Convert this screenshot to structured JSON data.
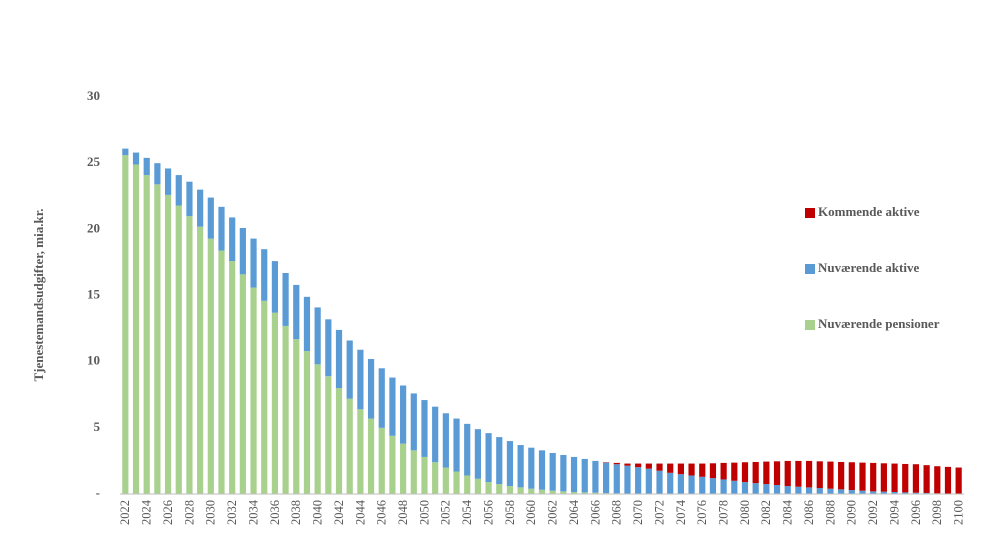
{
  "chart_data": {
    "type": "stacked_bar",
    "y_label": "Tjenestemandsudgifter, mia.kr.",
    "categories": [
      "2022",
      null,
      "2024",
      null,
      "2026",
      null,
      "2028",
      null,
      "2030",
      null,
      "2032",
      null,
      "2034",
      null,
      "2036",
      null,
      "2038",
      null,
      "2040",
      null,
      "2042",
      null,
      "2044",
      null,
      "2046",
      null,
      "2048",
      null,
      "2050",
      null,
      "2052",
      null,
      "2054",
      null,
      "2056",
      null,
      "2058",
      null,
      "2060",
      null,
      "2062",
      null,
      "2064",
      null,
      "2066",
      null,
      "2068",
      null,
      "2070",
      null,
      "2072",
      null,
      "2074",
      null,
      "2076",
      null,
      "2078",
      null,
      "2080",
      null,
      "2082",
      null,
      "2084",
      null,
      "2086",
      null,
      "2088",
      null,
      "2090",
      null,
      "2092",
      null,
      "2094",
      null,
      "2096",
      null,
      "2098",
      null,
      "2100"
    ],
    "series": [
      {
        "name": "Nuværende pensioner",
        "color": "#a9d18e",
        "values": [
          25.6,
          24.9,
          24.1,
          23.4,
          22.6,
          21.8,
          21.0,
          20.2,
          19.3,
          18.4,
          17.6,
          16.6,
          15.6,
          14.6,
          13.7,
          12.7,
          11.7,
          10.8,
          9.8,
          8.9,
          8.0,
          7.2,
          6.4,
          5.7,
          5.0,
          4.4,
          3.8,
          3.3,
          2.8,
          2.4,
          2.0,
          1.7,
          1.4,
          1.15,
          0.9,
          0.75,
          0.6,
          0.5,
          0.4,
          0.32,
          0.25,
          0.2,
          0.15,
          0.12,
          0.1,
          0.07,
          0.05,
          0.04,
          0.03,
          0.02,
          0.01,
          0,
          0,
          0,
          0,
          0,
          0,
          0,
          0,
          0,
          0,
          0,
          0,
          0,
          0,
          0,
          0,
          0,
          0,
          0,
          0,
          0,
          0,
          0,
          0,
          0,
          0,
          0,
          0
        ]
      },
      {
        "name": "Nuværende aktive",
        "color": "#5b9bd5",
        "values": [
          0.5,
          0.9,
          1.3,
          1.6,
          2.0,
          2.3,
          2.6,
          2.8,
          3.1,
          3.3,
          3.3,
          3.5,
          3.7,
          3.9,
          3.9,
          4.0,
          4.1,
          4.1,
          4.3,
          4.3,
          4.4,
          4.4,
          4.5,
          4.5,
          4.5,
          4.4,
          4.4,
          4.3,
          4.3,
          4.2,
          4.1,
          4.0,
          3.9,
          3.75,
          3.7,
          3.55,
          3.4,
          3.2,
          3.1,
          2.98,
          2.85,
          2.75,
          2.65,
          2.53,
          2.4,
          2.3,
          2.2,
          2.1,
          2.0,
          1.9,
          1.75,
          1.6,
          1.5,
          1.4,
          1.3,
          1.2,
          1.1,
          1.0,
          0.9,
          0.82,
          0.75,
          0.68,
          0.6,
          0.55,
          0.5,
          0.45,
          0.4,
          0.35,
          0.3,
          0.25,
          0.2,
          0.18,
          0.15,
          0.12,
          0.1,
          0.08,
          0.05,
          0.03,
          0.02
        ]
      },
      {
        "name": "Kommende aktive",
        "color": "#c00000",
        "values": [
          0,
          0,
          0,
          0,
          0,
          0,
          0,
          0,
          0,
          0,
          0,
          0,
          0,
          0,
          0,
          0,
          0,
          0,
          0,
          0,
          0,
          0,
          0,
          0,
          0,
          0,
          0,
          0,
          0,
          0,
          0,
          0,
          0,
          0,
          0,
          0,
          0,
          0,
          0,
          0,
          0,
          0,
          0,
          0,
          0,
          0.03,
          0.1,
          0.16,
          0.27,
          0.38,
          0.54,
          0.7,
          0.8,
          0.9,
          1.0,
          1.12,
          1.25,
          1.37,
          1.5,
          1.6,
          1.7,
          1.79,
          1.9,
          1.95,
          2.0,
          2.02,
          2.05,
          2.07,
          2.1,
          2.12,
          2.15,
          2.14,
          2.15,
          2.15,
          2.15,
          2.1,
          2.05,
          2.02,
          1.98
        ]
      }
    ],
    "ylim": [
      0,
      30
    ],
    "yticks": [
      {
        "value": 0,
        "label": "-"
      },
      5,
      10,
      15,
      20,
      25,
      30
    ],
    "legend": "right",
    "grid": false
  }
}
